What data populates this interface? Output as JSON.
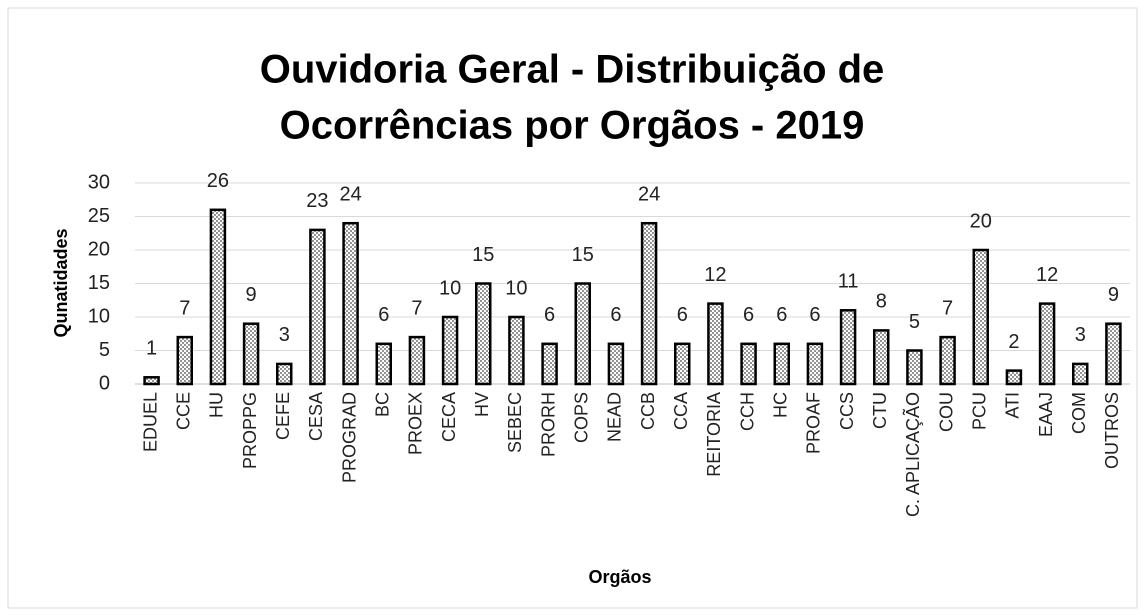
{
  "chart_data": {
    "type": "bar",
    "title": [
      "Ouvidoria Geral - Distribuição de",
      "Ocorrências por Orgãos - 2019"
    ],
    "x_label": "Orgãos",
    "y_label": "Qunatidades",
    "categories": [
      "EDUEL",
      "CCE",
      "HU",
      "PROPPG",
      "CEFE",
      "CESA",
      "PROGRAD",
      "BC",
      "PROEX",
      "CECA",
      "HV",
      "SEBEC",
      "PRORH",
      "COPS",
      "NEAD",
      "CCB",
      "CCA",
      "REITORIA",
      "CCH",
      "HC",
      "PROAF",
      "CCS",
      "CTU",
      "C. APLICAÇÃO",
      "COU",
      "PCU",
      "ATI",
      "EAAJ",
      "COM",
      "OUTROS"
    ],
    "values": [
      1,
      7,
      26,
      9,
      3,
      23,
      24,
      6,
      7,
      10,
      15,
      10,
      6,
      15,
      6,
      24,
      6,
      12,
      6,
      6,
      6,
      11,
      8,
      5,
      7,
      20,
      2,
      12,
      3,
      9
    ],
    "color": "#888888",
    "ylim": [
      0,
      30
    ],
    "yticks": [
      0,
      5,
      10,
      15,
      20,
      25,
      30
    ],
    "grid": true
  }
}
